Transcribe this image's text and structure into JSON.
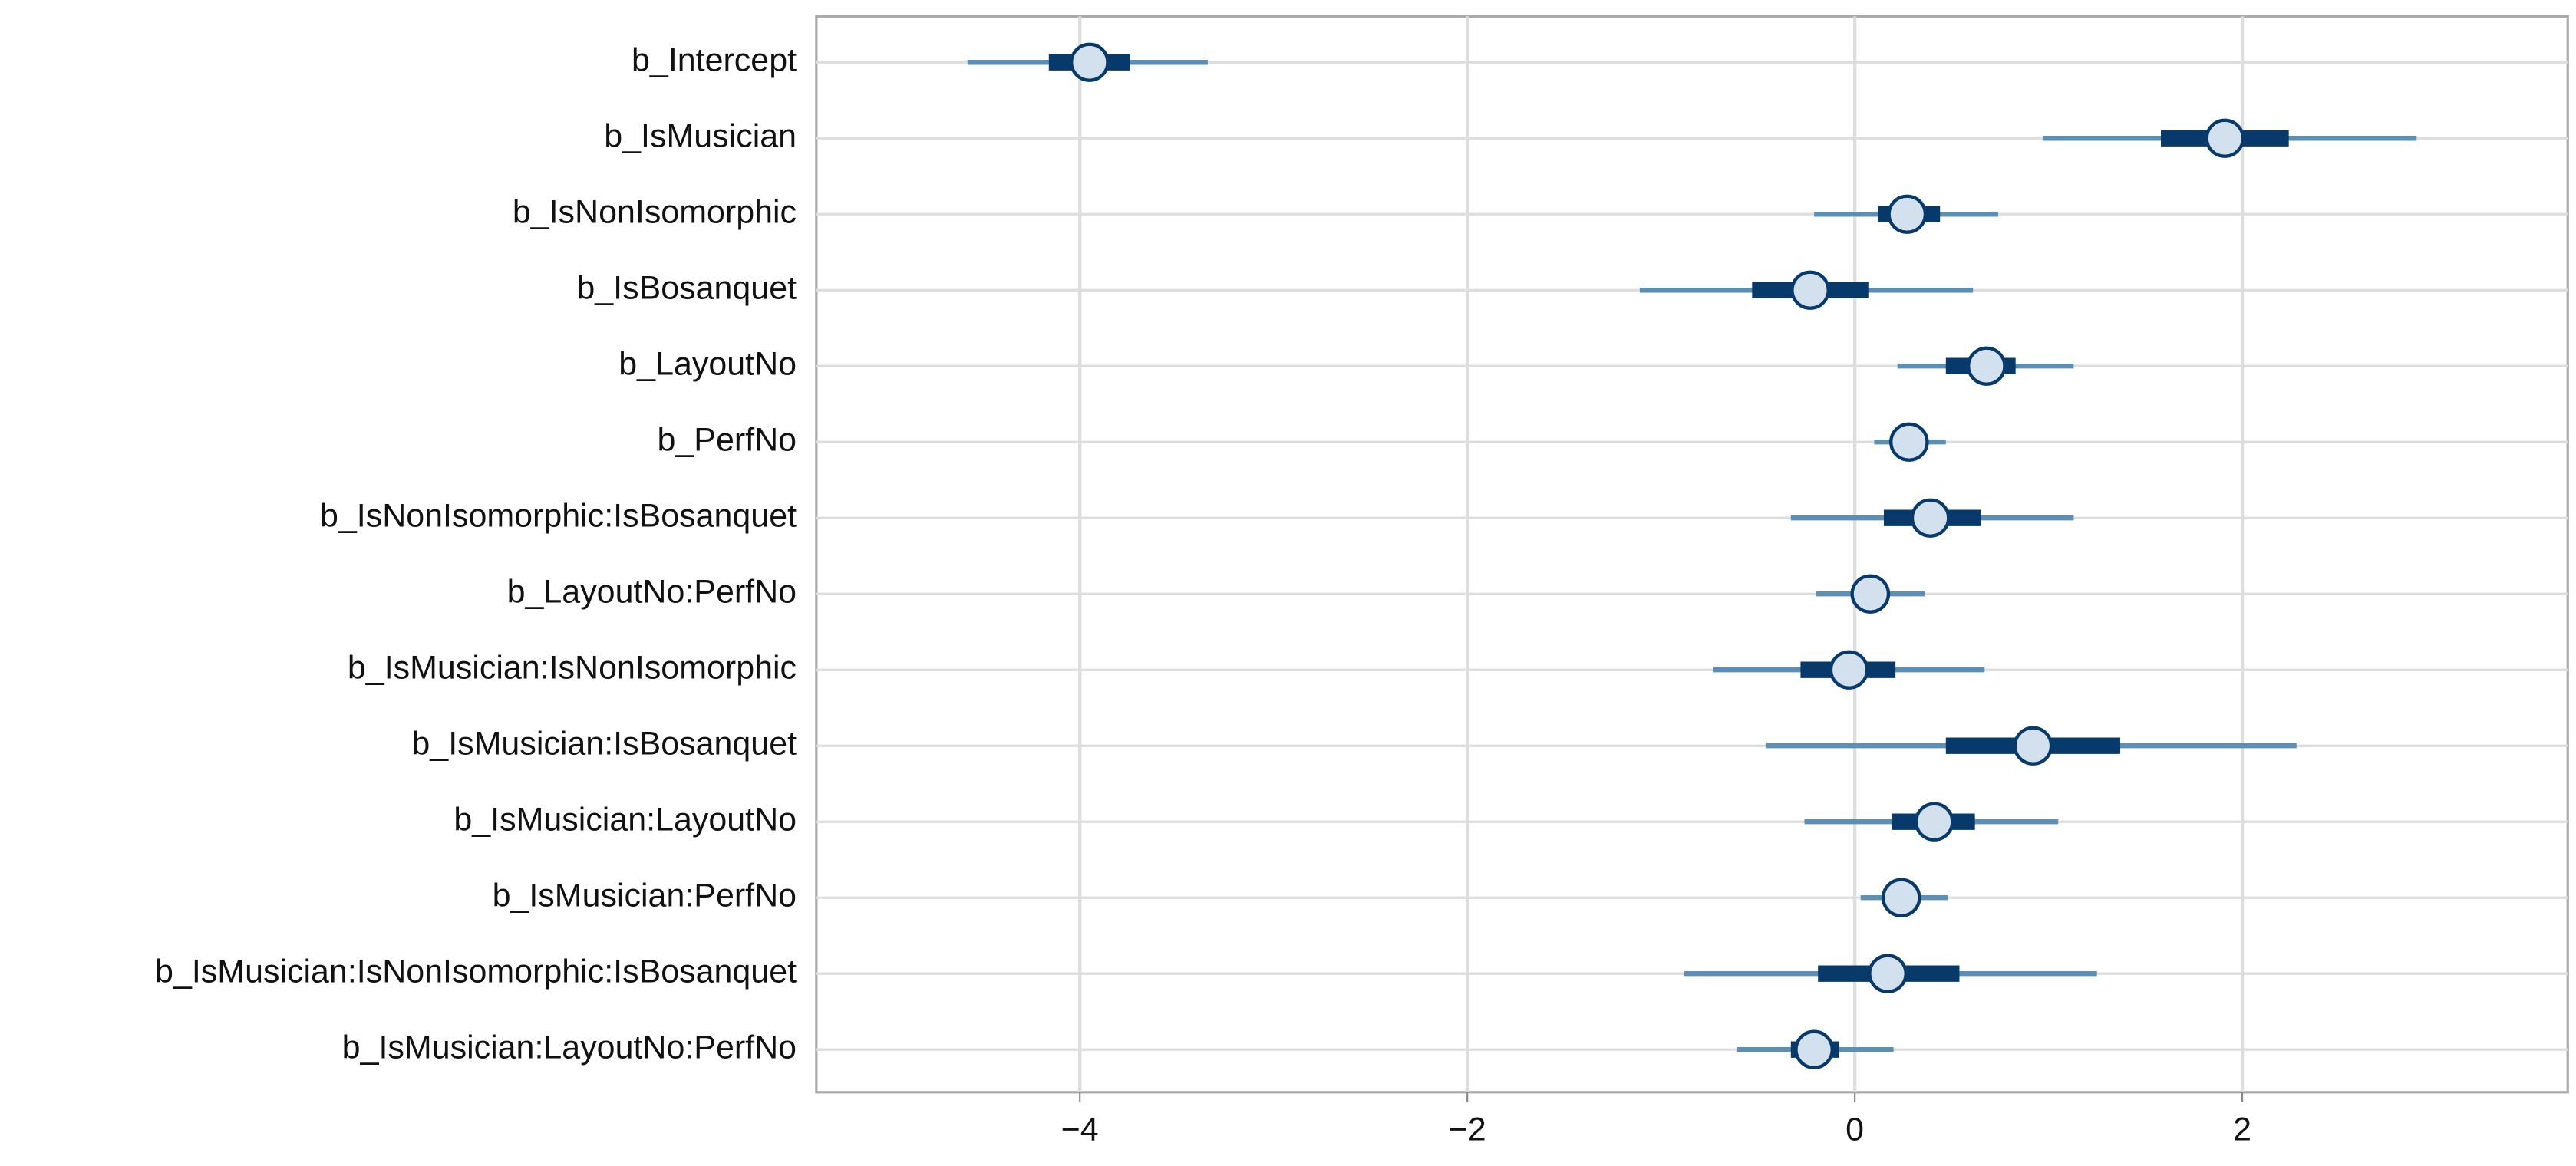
{
  "chart_data": {
    "type": "interval",
    "categories": [
      "b_Intercept",
      "b_IsMusician",
      "b_IsNonIsomorphic",
      "b_IsBosanquet",
      "b_LayoutNo",
      "b_PerfNo",
      "b_IsNonIsomorphic:IsBosanquet",
      "b_LayoutNo:PerfNo",
      "b_IsMusician:IsNonIsomorphic",
      "b_IsMusician:IsBosanquet",
      "b_IsMusician:LayoutNo",
      "b_IsMusician:PerfNo",
      "b_IsMusician:IsNonIsomorphic:IsBosanquet",
      "b_IsMusician:LayoutNo:PerfNo"
    ],
    "point": [
      -3.95,
      1.91,
      0.27,
      -0.23,
      0.68,
      0.28,
      0.39,
      0.08,
      -0.03,
      0.92,
      0.41,
      0.24,
      0.17,
      -0.21
    ],
    "inner_low": [
      -4.16,
      1.58,
      0.12,
      -0.53,
      0.47,
      0.2,
      0.15,
      0.0,
      -0.28,
      0.47,
      0.19,
      0.15,
      -0.19,
      -0.33
    ],
    "inner_high": [
      -3.74,
      2.24,
      0.44,
      0.07,
      0.83,
      0.37,
      0.65,
      0.15,
      0.21,
      1.37,
      0.62,
      0.32,
      0.54,
      -0.08
    ],
    "outer_low": [
      -4.58,
      0.97,
      -0.21,
      -1.11,
      0.22,
      0.1,
      -0.33,
      -0.2,
      -0.73,
      -0.46,
      -0.26,
      0.03,
      -0.88,
      -0.61
    ],
    "outer_high": [
      -3.34,
      2.9,
      0.74,
      0.61,
      1.13,
      0.47,
      1.13,
      0.36,
      0.67,
      2.28,
      1.05,
      0.48,
      1.25,
      0.2
    ],
    "outer_color": "#5b8fb5",
    "inner_color": "#08396b",
    "point_color": "#d2e1ed",
    "xlim": [
      -5.36,
      3.68
    ],
    "xticks": [
      {
        "value": -4,
        "label": "−4"
      },
      {
        "value": -2,
        "label": "−2"
      },
      0,
      2
    ],
    "grid": true
  }
}
